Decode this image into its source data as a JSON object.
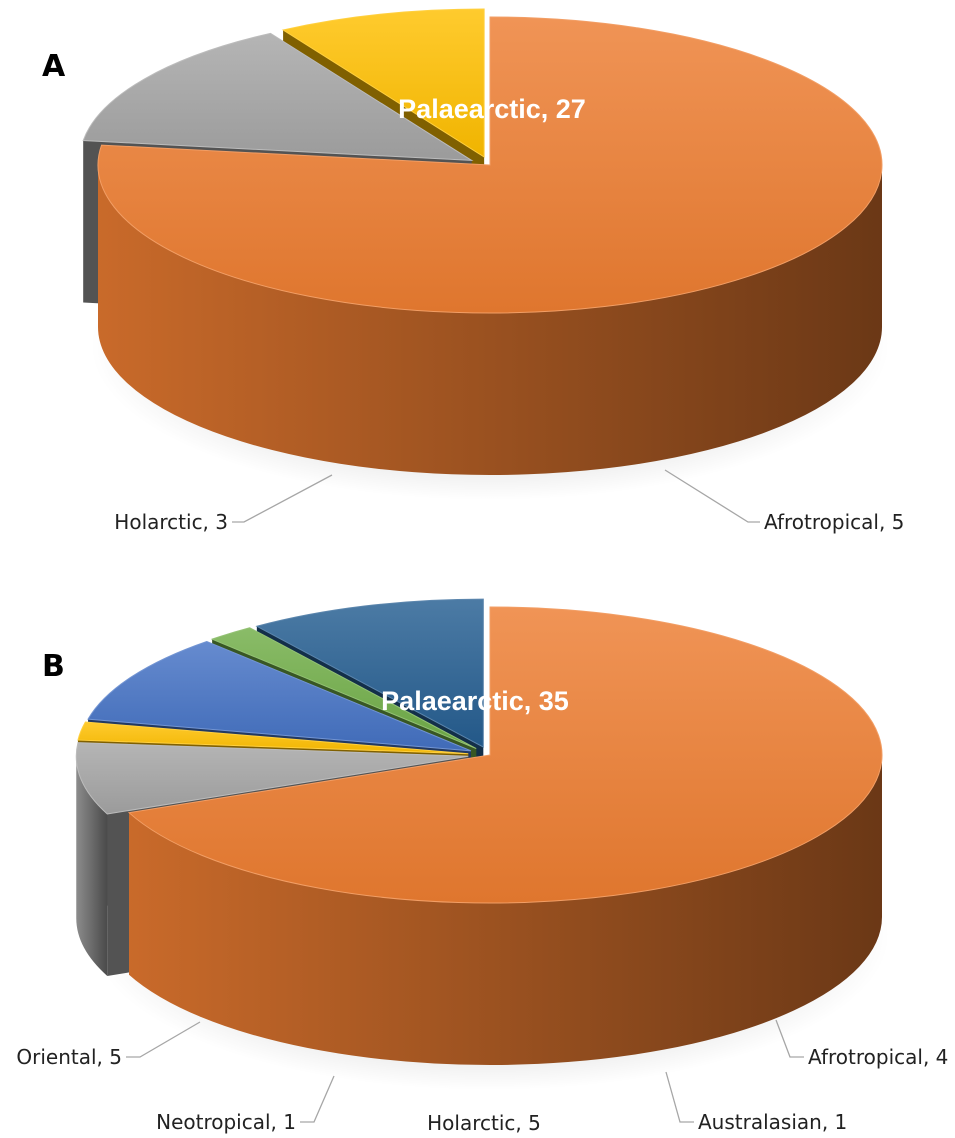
{
  "chart_data": [
    {
      "type": "pie",
      "panel": "A",
      "slices": [
        {
          "label": "Palaearctic",
          "value": 27,
          "color": "#ed7d31",
          "text": "Palaearctic, 27"
        },
        {
          "label": "Afrotropical",
          "value": 5,
          "color": "#a5a5a5",
          "text": "Afrotropical, 5"
        },
        {
          "label": "Holarctic",
          "value": 3,
          "color": "#ffc000",
          "text": "Holarctic, 3"
        }
      ]
    },
    {
      "type": "pie",
      "panel": "B",
      "slices": [
        {
          "label": "Palaearctic",
          "value": 35,
          "color": "#ed7d31",
          "text": "Palaearctic, 35"
        },
        {
          "label": "Afrotropical",
          "value": 4,
          "color": "#a5a5a5",
          "text": "Afrotropical, 4"
        },
        {
          "label": "Australasian",
          "value": 1,
          "color": "#ffc000",
          "text": "Australasian, 1"
        },
        {
          "label": "Holarctic",
          "value": 5,
          "color": "#4472c4",
          "text": "Holarctic, 5"
        },
        {
          "label": "Neotropical",
          "value": 1,
          "color": "#70ad47",
          "text": "Neotropical, 1"
        },
        {
          "label": "Oriental",
          "value": 5,
          "color": "#255e91",
          "text": "Oriental, 5"
        }
      ]
    }
  ]
}
